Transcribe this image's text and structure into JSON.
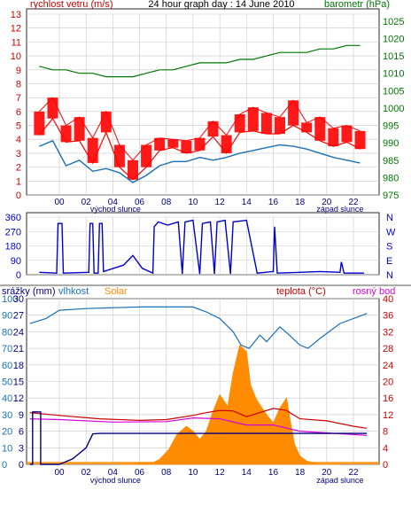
{
  "colors": {
    "wind": "#ff0000",
    "gust_fill": "#ff0000",
    "baro": "#007700",
    "humid": "#1a6fb5",
    "solar": "#ff8c00",
    "rain": "#00007f",
    "temp": "#cc0000",
    "dew": "#dd00dd",
    "axis_left": "#cc0000",
    "axis_right": "#007700",
    "winddir": "#0000cc",
    "grid": "#c8c8c8"
  },
  "chart_data": [
    {
      "type": "line",
      "title": "24 hour graph day : 14 June 2010",
      "left_label": "rychlost vetru (m/s)",
      "right_label": "barometr (hPa)",
      "x_ticks": [
        "00",
        "02",
        "04",
        "06",
        "08",
        "10",
        "12",
        "14",
        "16",
        "18",
        "20",
        "22"
      ],
      "x_sublabels": [
        "východ slunce",
        "západ slunce"
      ],
      "left_ticks": [
        0,
        1,
        2,
        3,
        4,
        5,
        6,
        7,
        8,
        9,
        10,
        11,
        12,
        13
      ],
      "right_ticks": [
        975,
        980,
        985,
        990,
        995,
        1000,
        1005,
        1010,
        1015,
        1020,
        1025
      ],
      "ylim_left": [
        0,
        13
      ],
      "ylim_right": [
        975,
        1027
      ],
      "x": [
        -1.5,
        -0.5,
        0.5,
        1.5,
        2.5,
        3.5,
        4.5,
        5.5,
        6.5,
        7.5,
        8.5,
        9.5,
        10.5,
        11.5,
        12.5,
        13.5,
        14.5,
        15.5,
        16.5,
        17.5,
        18.5,
        19.5,
        20.5,
        21.5,
        22.5
      ],
      "series": [
        {
          "name": "rychlost vetru",
          "values": [
            4.3,
            5.5,
            3.8,
            3.9,
            2.3,
            4.5,
            2.0,
            1.1,
            2.0,
            3.2,
            3.4,
            3.0,
            3.2,
            4.2,
            3.0,
            4.5,
            4.6,
            4.4,
            4.4,
            5.0,
            4.5,
            3.9,
            3.5,
            3.8,
            3.3
          ]
        },
        {
          "name": "náraz",
          "values": [
            6.0,
            7.0,
            5.0,
            5.6,
            4.1,
            6.0,
            3.6,
            2.5,
            3.6,
            4.1,
            4.0,
            3.9,
            4.1,
            5.3,
            4.3,
            5.8,
            6.3,
            5.9,
            5.6,
            6.8,
            5.2,
            5.6,
            4.8,
            5.0,
            4.6
          ]
        },
        {
          "name": "vítr průměr",
          "values": [
            3.5,
            3.9,
            2.1,
            2.5,
            1.7,
            1.9,
            1.6,
            0.9,
            1.4,
            2.1,
            2.4,
            2.4,
            2.7,
            2.5,
            2.7,
            3.0,
            3.2,
            3.4,
            3.6,
            3.5,
            3.3,
            3.0,
            2.7,
            2.5,
            2.3
          ]
        },
        {
          "name": "barometr",
          "values": [
            1012,
            1011,
            1011,
            1010,
            1010,
            1009,
            1009,
            1009,
            1010,
            1011,
            1011,
            1012,
            1013,
            1013,
            1013,
            1014,
            1014,
            1015,
            1016,
            1016,
            1016,
            1017,
            1017,
            1018,
            1018
          ]
        }
      ]
    },
    {
      "type": "line",
      "right_letters": [
        "N",
        "W",
        "S",
        "E",
        "N"
      ],
      "left_ticks": [
        0,
        90,
        180,
        270,
        360
      ],
      "ylim": [
        0,
        360
      ],
      "segments": [
        [
          [
            -1.5,
            15
          ],
          [
            -0.2,
            10
          ],
          [
            -0.1,
            320
          ],
          [
            0.2,
            320
          ],
          [
            0.3,
            10
          ],
          [
            2.2,
            15
          ],
          [
            2.3,
            320
          ],
          [
            2.5,
            320
          ],
          [
            2.6,
            10
          ],
          [
            2.9,
            10
          ],
          [
            3.0,
            320
          ],
          [
            3.2,
            320
          ],
          [
            3.3,
            20
          ],
          [
            4.8,
            60
          ],
          [
            5.5,
            120
          ],
          [
            6.2,
            40
          ],
          [
            7.0,
            10
          ],
          [
            7.1,
            300
          ],
          [
            7.4,
            330
          ],
          [
            8.1,
            310
          ],
          [
            8.5,
            320
          ],
          [
            8.9,
            330
          ],
          [
            9.2,
            5
          ],
          [
            9.4,
            330
          ],
          [
            10.0,
            340
          ],
          [
            10.5,
            5
          ],
          [
            10.7,
            320
          ],
          [
            11.3,
            330
          ],
          [
            11.6,
            5
          ],
          [
            11.8,
            330
          ],
          [
            12.4,
            340
          ],
          [
            12.8,
            5
          ],
          [
            13.0,
            330
          ],
          [
            14.0,
            340
          ],
          [
            14.8,
            10
          ],
          [
            16.0,
            20
          ],
          [
            16.1,
            300
          ],
          [
            16.3,
            10
          ],
          [
            18.0,
            15
          ],
          [
            19.5,
            20
          ],
          [
            21.0,
            15
          ],
          [
            21.1,
            80
          ],
          [
            21.3,
            10
          ],
          [
            22.8,
            10
          ]
        ]
      ]
    },
    {
      "type": "area",
      "left_label": "srážky (mm)",
      "series_labels": [
        "vlhkost",
        "Solar",
        "teplota (°C)",
        "rosný bod"
      ],
      "left_ticks_outer": [
        0,
        10,
        20,
        30,
        40,
        50,
        60,
        70,
        80,
        90,
        100
      ],
      "left_ticks_inner": [
        0,
        3,
        6,
        9,
        12,
        15,
        18,
        21,
        24,
        27,
        30
      ],
      "right_ticks": [
        0,
        4,
        8,
        12,
        16,
        20,
        24,
        28,
        32,
        36,
        40
      ],
      "ylim_humid": [
        0,
        100
      ],
      "ylim_temp": [
        0,
        40
      ],
      "ylim_rain": [
        0,
        30
      ],
      "x_ticks": [
        "00",
        "02",
        "04",
        "06",
        "08",
        "10",
        "12",
        "14",
        "16",
        "18",
        "20",
        "22"
      ],
      "x_sublabels": [
        "východ slunce",
        "západ slunce"
      ],
      "humidity": [
        [
          -2.2,
          85
        ],
        [
          -1.0,
          88
        ],
        [
          0.0,
          93
        ],
        [
          2.0,
          94
        ],
        [
          6.0,
          95
        ],
        [
          10.0,
          95
        ],
        [
          11.0,
          92
        ],
        [
          12.0,
          88
        ],
        [
          13.0,
          80
        ],
        [
          13.6,
          72
        ],
        [
          14.2,
          70
        ],
        [
          15.0,
          78
        ],
        [
          15.5,
          74
        ],
        [
          16.5,
          83
        ],
        [
          17.2,
          78
        ],
        [
          18.0,
          72
        ],
        [
          18.6,
          70
        ],
        [
          19.5,
          76
        ],
        [
          21.0,
          85
        ],
        [
          23.0,
          91
        ]
      ],
      "temperature": [
        [
          -2.2,
          12.5
        ],
        [
          0.0,
          11.8
        ],
        [
          3.0,
          11.0
        ],
        [
          6.0,
          10.6
        ],
        [
          8.0,
          10.8
        ],
        [
          10.0,
          11.8
        ],
        [
          11.0,
          12.5
        ],
        [
          12.0,
          13.0
        ],
        [
          13.0,
          12.9
        ],
        [
          14.0,
          11.5
        ],
        [
          15.0,
          12.5
        ],
        [
          16.0,
          13.5
        ],
        [
          17.0,
          13.0
        ],
        [
          18.0,
          11.0
        ],
        [
          20.0,
          10.5
        ],
        [
          22.0,
          9.2
        ],
        [
          23.0,
          8.7
        ]
      ],
      "dew_point": [
        [
          -2.2,
          11.0
        ],
        [
          0.0,
          10.8
        ],
        [
          4.0,
          10.2
        ],
        [
          8.0,
          10.3
        ],
        [
          10.0,
          11.2
        ],
        [
          12.0,
          11.0
        ],
        [
          14.0,
          9.5
        ],
        [
          16.0,
          9.5
        ],
        [
          18.0,
          8.0
        ],
        [
          20.0,
          7.6
        ],
        [
          23.0,
          7.0
        ]
      ],
      "rain": [
        [
          -2.2,
          0
        ],
        [
          -2.0,
          0
        ],
        [
          -2.0,
          9.5
        ],
        [
          -1.4,
          9.5
        ],
        [
          -1.4,
          0
        ],
        [
          0.0,
          0
        ],
        [
          1.0,
          1.0
        ],
        [
          2.0,
          3.0
        ],
        [
          2.5,
          5.5
        ],
        [
          3.0,
          5.6
        ],
        [
          23.0,
          5.6
        ]
      ],
      "solar": [
        [
          4.5,
          0
        ],
        [
          5.5,
          0
        ],
        [
          6.0,
          1
        ],
        [
          7.0,
          1
        ],
        [
          7.5,
          3
        ],
        [
          8.2,
          9
        ],
        [
          8.8,
          18
        ],
        [
          9.5,
          23
        ],
        [
          10.0,
          20
        ],
        [
          10.5,
          15
        ],
        [
          11.0,
          20
        ],
        [
          11.5,
          32
        ],
        [
          12.0,
          42
        ],
        [
          12.6,
          35
        ],
        [
          13.0,
          55
        ],
        [
          13.5,
          72
        ],
        [
          14.0,
          68
        ],
        [
          14.3,
          48
        ],
        [
          14.7,
          40
        ],
        [
          15.0,
          36
        ],
        [
          15.5,
          30
        ],
        [
          16.0,
          25
        ],
        [
          16.5,
          34
        ],
        [
          17.0,
          40
        ],
        [
          17.3,
          25
        ],
        [
          17.6,
          12
        ],
        [
          18.0,
          5
        ],
        [
          18.5,
          2
        ],
        [
          19.5,
          0
        ],
        [
          21.0,
          0
        ]
      ]
    }
  ]
}
